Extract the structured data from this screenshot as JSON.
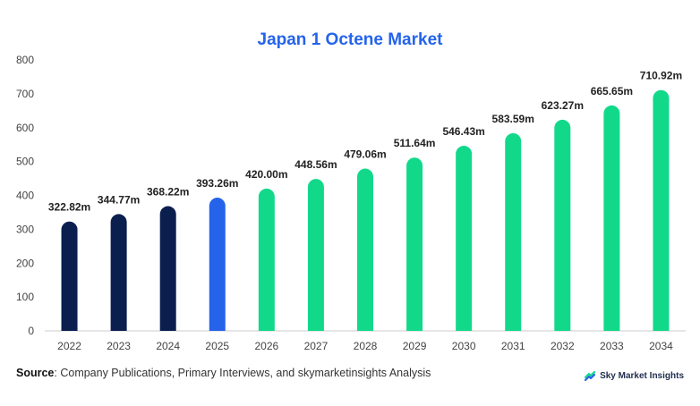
{
  "chart_data": {
    "type": "bar",
    "title": "Japan 1 Octene Market",
    "categories": [
      "2022",
      "2023",
      "2024",
      "2025",
      "2026",
      "2027",
      "2028",
      "2029",
      "2030",
      "2031",
      "2032",
      "2033",
      "2034"
    ],
    "values": [
      322.82,
      344.77,
      368.22,
      393.26,
      420.0,
      448.56,
      479.06,
      511.64,
      546.43,
      583.59,
      623.27,
      665.65,
      710.92
    ],
    "value_labels": [
      "322.82m",
      "344.77m",
      "368.22m",
      "393.26m",
      "420.00m",
      "448.56m",
      "479.06m",
      "511.64m",
      "546.43m",
      "583.59m",
      "623.27m",
      "665.65m",
      "710.92m"
    ],
    "bar_colors": [
      "#0b1f4f",
      "#0b1f4f",
      "#0b1f4f",
      "#2563eb",
      "#12d98a",
      "#12d98a",
      "#12d98a",
      "#12d98a",
      "#12d98a",
      "#12d98a",
      "#12d98a",
      "#12d98a",
      "#12d98a"
    ],
    "ylim": [
      0,
      800
    ],
    "yticks": [
      0,
      100,
      200,
      300,
      400,
      500,
      600,
      700,
      800
    ],
    "grid": false,
    "legend": "none"
  },
  "source": {
    "label": "Source",
    "text": ": Company Publications, Primary Interviews, and skymarketinsights Analysis"
  },
  "brand": {
    "name": "Sky Market Insights",
    "logo_icon": "sky-market-insights-logo-icon",
    "logo_colors": [
      "#12d98a",
      "#2563eb"
    ]
  }
}
